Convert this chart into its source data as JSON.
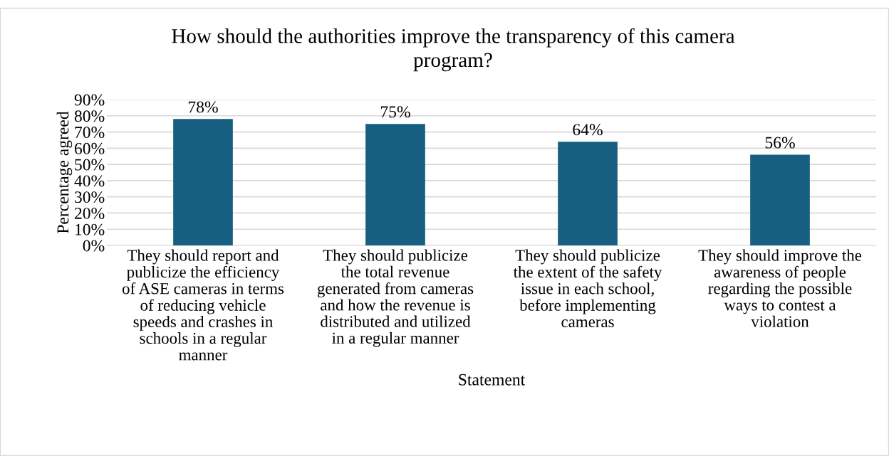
{
  "chart_data": {
    "type": "bar",
    "title": "How should the authorities improve the transparency of this camera\nprogram?",
    "xlabel": "Statement",
    "ylabel": "Percentage agreed",
    "categories": [
      "They should report and\npublicize the efficiency\nof ASE cameras in terms\nof reducing vehicle\nspeeds and crashes in\nschools in a regular\nmanner",
      "They should publicize\nthe total revenue\ngenerated from cameras\nand how the revenue is\ndistributed and utilized\nin a regular manner",
      "They should publicize\nthe extent of the safety\nissue in each school,\nbefore implementing\ncameras",
      "They should improve the\nawareness of people\nregarding the possible\nways to contest a\nviolation"
    ],
    "values": [
      78,
      75,
      64,
      56
    ],
    "value_labels": [
      "78%",
      "75%",
      "64%",
      "56%"
    ],
    "color": "#175f80",
    "ylim": [
      0,
      90
    ],
    "yticks": [
      {
        "value": 0,
        "label": "0%"
      },
      {
        "value": 10,
        "label": "10%"
      },
      {
        "value": 20,
        "label": "20%"
      },
      {
        "value": 30,
        "label": "30%"
      },
      {
        "value": 40,
        "label": "40%"
      },
      {
        "value": 50,
        "label": "50%"
      },
      {
        "value": 60,
        "label": "60%"
      },
      {
        "value": 70,
        "label": "70%"
      },
      {
        "value": 80,
        "label": "80%"
      },
      {
        "value": 90,
        "label": "90%"
      }
    ],
    "grid": "y"
  }
}
